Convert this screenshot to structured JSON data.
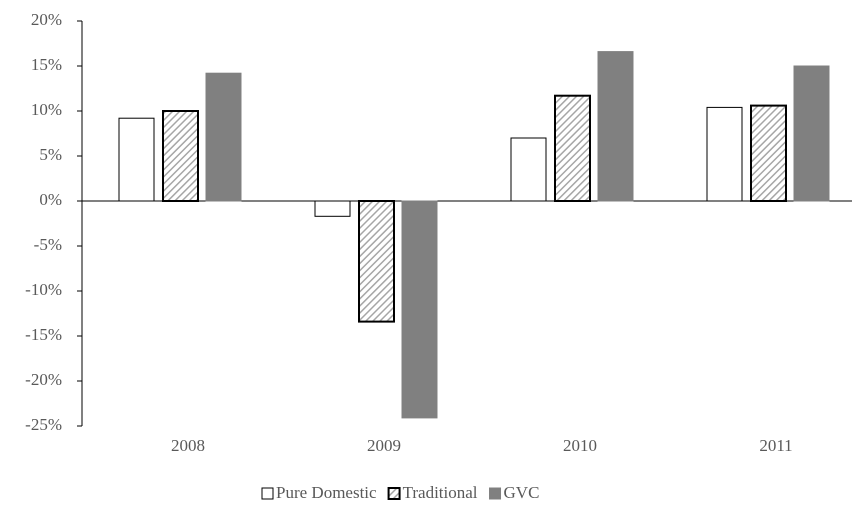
{
  "chart_data": {
    "type": "bar",
    "categories": [
      "2008",
      "2009",
      "2010",
      "2011"
    ],
    "series": [
      {
        "name": "Pure Domestic",
        "color": "#ffffff",
        "values": [
          9.2,
          -1.7,
          7.0,
          10.4
        ]
      },
      {
        "name": "Traditional",
        "color": "#a6a6a6",
        "pattern": "hatch",
        "values": [
          10.0,
          -13.4,
          11.7,
          10.6
        ]
      },
      {
        "name": "GVC",
        "color": "#808080",
        "values": [
          14.2,
          -24.1,
          16.6,
          15.0
        ]
      }
    ],
    "ylim": [
      -25,
      20
    ],
    "yticks": [
      {
        "value": -25,
        "label": "-25%"
      },
      {
        "value": -20,
        "label": "-20%"
      },
      {
        "value": -15,
        "label": "-15%"
      },
      {
        "value": -10,
        "label": "-10%"
      },
      {
        "value": -5,
        "label": "-5%"
      },
      {
        "value": 0,
        "label": "0%"
      },
      {
        "value": 5,
        "label": "5%"
      },
      {
        "value": 10,
        "label": "10%"
      },
      {
        "value": 15,
        "label": "15%"
      },
      {
        "value": 20,
        "label": "20%"
      }
    ],
    "grid": false,
    "legend": "bottom"
  }
}
